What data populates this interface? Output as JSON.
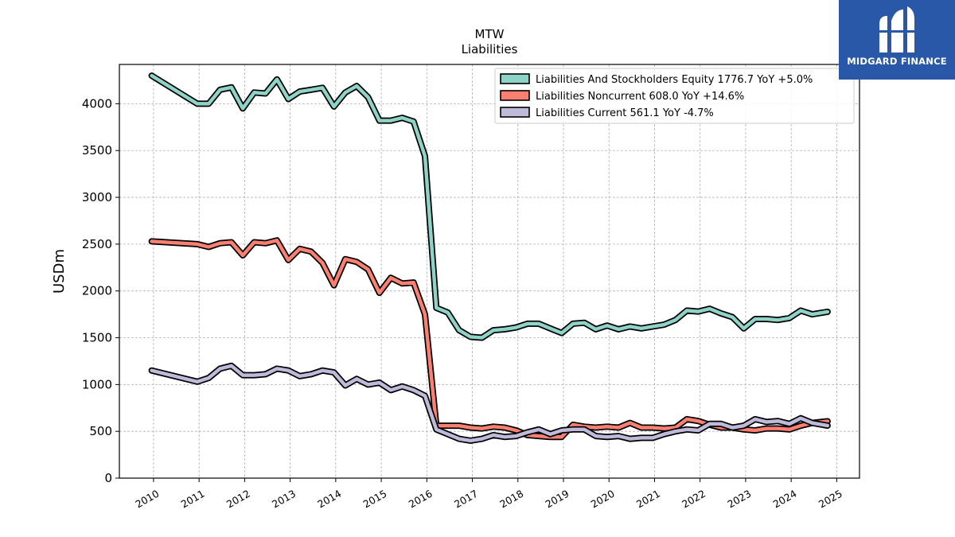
{
  "logo": {
    "text": "MIDGARD FINANCE",
    "bg_color": "#2a58a8",
    "icon": "stylized-m-icon"
  },
  "chart_data": {
    "type": "line",
    "title": "MTW",
    "subtitle": "Liabilities",
    "ylabel": "USDm",
    "xlabel": "",
    "xlim": [
      2009.25,
      2025.5
    ],
    "ylim": [
      0,
      4420
    ],
    "x_ticks": [
      2010,
      2011,
      2012,
      2013,
      2014,
      2015,
      2016,
      2017,
      2018,
      2019,
      2020,
      2021,
      2022,
      2023,
      2024,
      2025
    ],
    "y_ticks": [
      0,
      500,
      1000,
      1500,
      2000,
      2500,
      3000,
      3500,
      4000
    ],
    "grid": true,
    "legend_position": "top-right",
    "series": [
      {
        "name": "Liabilities And Stockholders Equity",
        "legend_label": "Liabilities And Stockholders Equity  1776.7 YoY +5.0%",
        "color": "#8dd3c7",
        "points": [
          [
            2009.96,
            4300
          ],
          [
            2010.96,
            4000
          ],
          [
            2011.21,
            4000
          ],
          [
            2011.46,
            4150
          ],
          [
            2011.71,
            4175
          ],
          [
            2011.96,
            3950
          ],
          [
            2012.21,
            4120
          ],
          [
            2012.46,
            4110
          ],
          [
            2012.71,
            4260
          ],
          [
            2012.96,
            4050
          ],
          [
            2013.21,
            4130
          ],
          [
            2013.46,
            4150
          ],
          [
            2013.71,
            4170
          ],
          [
            2013.96,
            3970
          ],
          [
            2014.21,
            4120
          ],
          [
            2014.46,
            4190
          ],
          [
            2014.71,
            4070
          ],
          [
            2014.96,
            3820
          ],
          [
            2015.21,
            3820
          ],
          [
            2015.46,
            3850
          ],
          [
            2015.71,
            3810
          ],
          [
            2015.96,
            3440
          ],
          [
            2016.21,
            1820
          ],
          [
            2016.46,
            1770
          ],
          [
            2016.71,
            1580
          ],
          [
            2016.96,
            1510
          ],
          [
            2017.21,
            1500
          ],
          [
            2017.46,
            1580
          ],
          [
            2017.71,
            1590
          ],
          [
            2017.96,
            1610
          ],
          [
            2018.21,
            1650
          ],
          [
            2018.46,
            1650
          ],
          [
            2018.71,
            1600
          ],
          [
            2018.96,
            1550
          ],
          [
            2019.21,
            1650
          ],
          [
            2019.46,
            1660
          ],
          [
            2019.71,
            1590
          ],
          [
            2019.96,
            1630
          ],
          [
            2020.21,
            1590
          ],
          [
            2020.46,
            1620
          ],
          [
            2020.71,
            1600
          ],
          [
            2020.96,
            1620
          ],
          [
            2021.21,
            1640
          ],
          [
            2021.46,
            1690
          ],
          [
            2021.71,
            1790
          ],
          [
            2021.96,
            1780
          ],
          [
            2022.21,
            1810
          ],
          [
            2022.46,
            1760
          ],
          [
            2022.71,
            1720
          ],
          [
            2022.96,
            1600
          ],
          [
            2023.21,
            1700
          ],
          [
            2023.46,
            1700
          ],
          [
            2023.71,
            1690
          ],
          [
            2023.96,
            1710
          ],
          [
            2024.21,
            1790
          ],
          [
            2024.46,
            1750
          ],
          [
            2024.8,
            1777
          ]
        ]
      },
      {
        "name": "Liabilities Noncurrent",
        "legend_label": "Liabilities Noncurrent  608.0 YoY +14.6%",
        "color": "#fb8072",
        "points": [
          [
            2009.96,
            2530
          ],
          [
            2010.96,
            2500
          ],
          [
            2011.21,
            2470
          ],
          [
            2011.46,
            2510
          ],
          [
            2011.71,
            2520
          ],
          [
            2011.96,
            2380
          ],
          [
            2012.21,
            2520
          ],
          [
            2012.46,
            2510
          ],
          [
            2012.71,
            2540
          ],
          [
            2012.96,
            2330
          ],
          [
            2013.21,
            2450
          ],
          [
            2013.46,
            2420
          ],
          [
            2013.71,
            2300
          ],
          [
            2013.96,
            2060
          ],
          [
            2014.21,
            2340
          ],
          [
            2014.46,
            2310
          ],
          [
            2014.71,
            2230
          ],
          [
            2014.96,
            1980
          ],
          [
            2015.21,
            2140
          ],
          [
            2015.46,
            2080
          ],
          [
            2015.71,
            2090
          ],
          [
            2015.96,
            1750
          ],
          [
            2016.21,
            560
          ],
          [
            2016.46,
            560
          ],
          [
            2016.71,
            560
          ],
          [
            2016.96,
            540
          ],
          [
            2017.21,
            530
          ],
          [
            2017.46,
            550
          ],
          [
            2017.71,
            540
          ],
          [
            2017.96,
            510
          ],
          [
            2018.21,
            460
          ],
          [
            2018.46,
            450
          ],
          [
            2018.71,
            440
          ],
          [
            2018.96,
            440
          ],
          [
            2019.21,
            570
          ],
          [
            2019.46,
            550
          ],
          [
            2019.71,
            540
          ],
          [
            2019.96,
            550
          ],
          [
            2020.21,
            540
          ],
          [
            2020.46,
            590
          ],
          [
            2020.71,
            540
          ],
          [
            2020.96,
            540
          ],
          [
            2021.21,
            530
          ],
          [
            2021.46,
            540
          ],
          [
            2021.71,
            630
          ],
          [
            2021.96,
            610
          ],
          [
            2022.21,
            570
          ],
          [
            2022.46,
            540
          ],
          [
            2022.71,
            540
          ],
          [
            2022.96,
            520
          ],
          [
            2023.21,
            510
          ],
          [
            2023.46,
            530
          ],
          [
            2023.71,
            530
          ],
          [
            2023.96,
            520
          ],
          [
            2024.21,
            560
          ],
          [
            2024.46,
            590
          ],
          [
            2024.8,
            608
          ]
        ]
      },
      {
        "name": "Liabilities Current",
        "legend_label": "Liabilities Current  561.1 YoY -4.7%",
        "color": "#bebada",
        "points": [
          [
            2009.96,
            1150
          ],
          [
            2010.96,
            1030
          ],
          [
            2011.21,
            1070
          ],
          [
            2011.46,
            1170
          ],
          [
            2011.71,
            1200
          ],
          [
            2011.96,
            1100
          ],
          [
            2012.21,
            1100
          ],
          [
            2012.46,
            1110
          ],
          [
            2012.71,
            1170
          ],
          [
            2012.96,
            1150
          ],
          [
            2013.21,
            1090
          ],
          [
            2013.46,
            1110
          ],
          [
            2013.71,
            1150
          ],
          [
            2013.96,
            1130
          ],
          [
            2014.21,
            990
          ],
          [
            2014.46,
            1060
          ],
          [
            2014.71,
            1000
          ],
          [
            2014.96,
            1020
          ],
          [
            2015.21,
            940
          ],
          [
            2015.46,
            980
          ],
          [
            2015.71,
            940
          ],
          [
            2015.96,
            880
          ],
          [
            2016.21,
            520
          ],
          [
            2016.46,
            470
          ],
          [
            2016.71,
            420
          ],
          [
            2016.96,
            400
          ],
          [
            2017.21,
            420
          ],
          [
            2017.46,
            460
          ],
          [
            2017.71,
            440
          ],
          [
            2017.96,
            450
          ],
          [
            2018.21,
            490
          ],
          [
            2018.46,
            520
          ],
          [
            2018.71,
            470
          ],
          [
            2018.96,
            510
          ],
          [
            2019.21,
            520
          ],
          [
            2019.46,
            520
          ],
          [
            2019.71,
            450
          ],
          [
            2019.96,
            440
          ],
          [
            2020.21,
            450
          ],
          [
            2020.46,
            420
          ],
          [
            2020.71,
            430
          ],
          [
            2020.96,
            430
          ],
          [
            2021.21,
            470
          ],
          [
            2021.46,
            500
          ],
          [
            2021.71,
            520
          ],
          [
            2021.96,
            510
          ],
          [
            2022.21,
            580
          ],
          [
            2022.46,
            580
          ],
          [
            2022.71,
            540
          ],
          [
            2022.96,
            560
          ],
          [
            2023.21,
            630
          ],
          [
            2023.46,
            600
          ],
          [
            2023.71,
            610
          ],
          [
            2023.96,
            580
          ],
          [
            2024.21,
            640
          ],
          [
            2024.46,
            590
          ],
          [
            2024.8,
            561
          ]
        ]
      }
    ]
  }
}
